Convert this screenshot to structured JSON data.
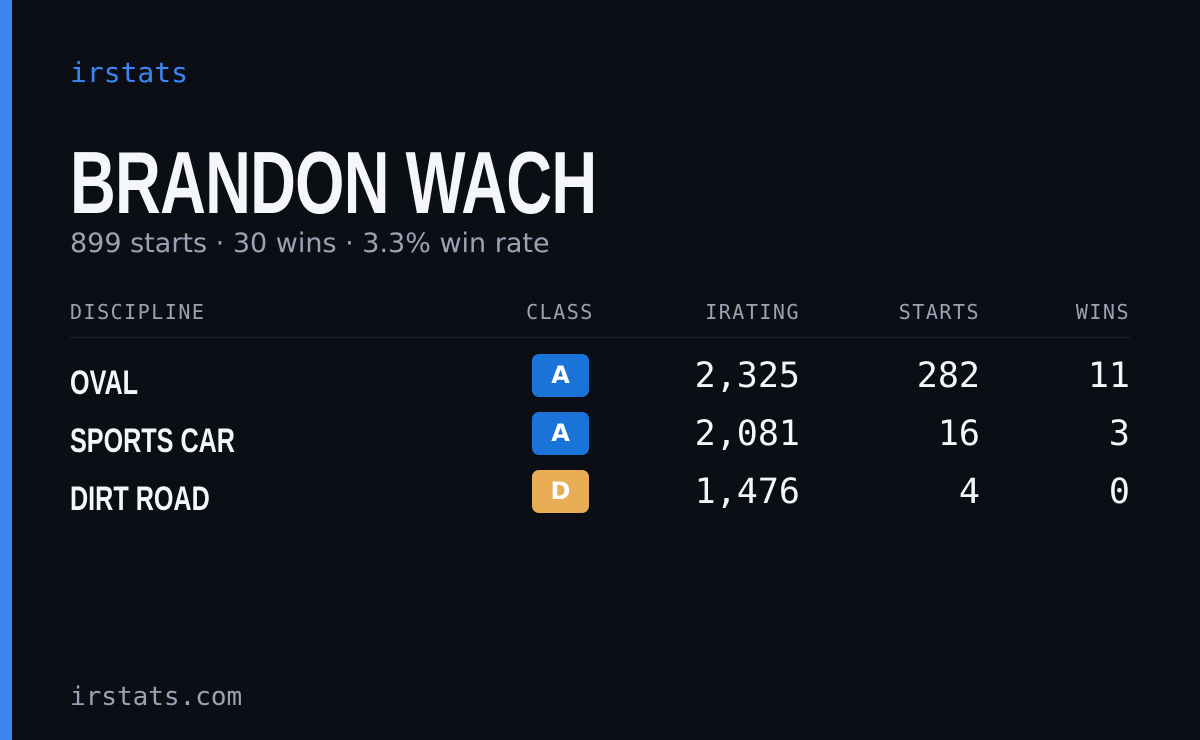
{
  "brand": "irstats",
  "player": {
    "name": "BRANDON WACH",
    "summary": "899 starts · 30 wins · 3.3% win rate"
  },
  "table": {
    "headers": [
      "DISCIPLINE",
      "CLASS",
      "IRATING",
      "STARTS",
      "WINS"
    ],
    "rows": [
      {
        "discipline": "OVAL",
        "class": "A",
        "class_color": "#1a73d9",
        "irating": "2,325",
        "starts": "282",
        "wins": "11"
      },
      {
        "discipline": "SPORTS CAR",
        "class": "A",
        "class_color": "#1a73d9",
        "irating": "2,081",
        "starts": "16",
        "wins": "3"
      },
      {
        "discipline": "DIRT ROAD",
        "class": "D",
        "class_color": "#e8ad55",
        "irating": "1,476",
        "starts": "4",
        "wins": "0"
      }
    ]
  },
  "footer": "irstats.com"
}
